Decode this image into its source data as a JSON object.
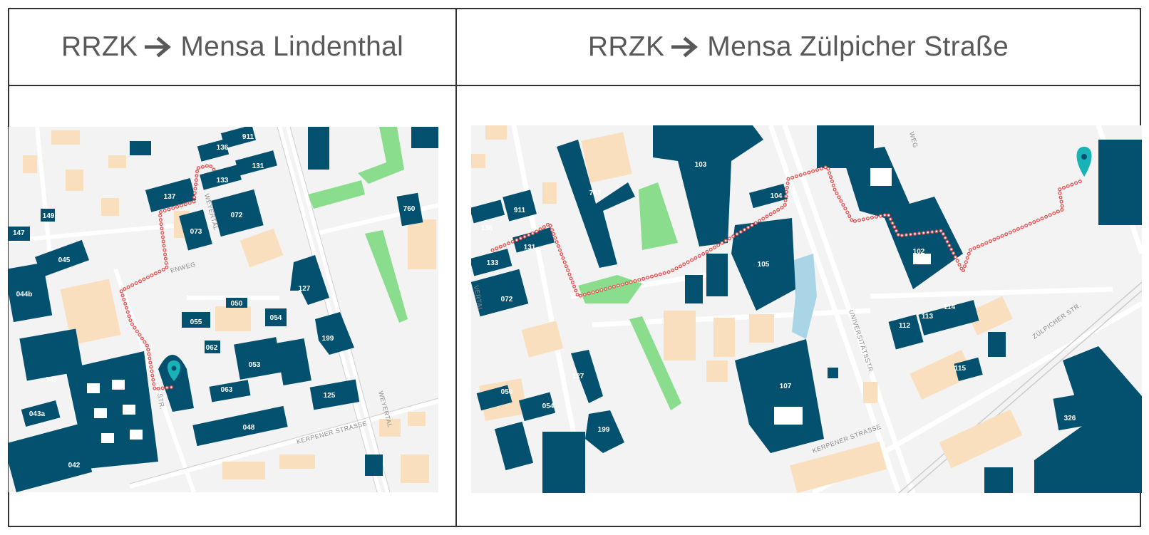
{
  "headers": {
    "left": {
      "from": "RRZK",
      "to": "Mensa Lindenthal"
    },
    "right": {
      "from": "RRZK",
      "to": "Mensa Zülpicher Straße"
    }
  },
  "colors": {
    "building": "#04506f",
    "building_light": "#f9dfbd",
    "green": "#89dd8c",
    "water": "#a9d5e6",
    "route": "#e94e4e",
    "pin": "#19b2b7",
    "map_bg": "#f3f3f3"
  },
  "icons": {
    "destination": "map-pin-icon",
    "arrow": "right-arrow-icon"
  },
  "left_map": {
    "building_labels": [
      "911",
      "136",
      "131",
      "133",
      "137",
      "072",
      "760",
      "149",
      "147",
      "073",
      "045",
      "044b",
      "127",
      "050",
      "054",
      "055",
      "062",
      "199",
      "053",
      "043",
      "063",
      "125",
      "043a",
      "048",
      "042"
    ],
    "street_labels": [
      "WEYERTAL",
      "ENWEG",
      "STR.",
      "WEYERTAL",
      "KERPENER STRASSE"
    ]
  },
  "right_map": {
    "building_labels": [
      "103",
      "763",
      "104",
      "911",
      "136",
      "131",
      "133",
      "072",
      "105",
      "102",
      "112",
      "113",
      "114",
      "115",
      "127",
      "107",
      "050",
      "054",
      "199",
      "326"
    ],
    "street_labels": [
      "WEG",
      "VERTAL",
      "UNIVERSITÄTSSTR.",
      "ZÜLPICHER STR.",
      "KERPENER STRASSE"
    ]
  }
}
